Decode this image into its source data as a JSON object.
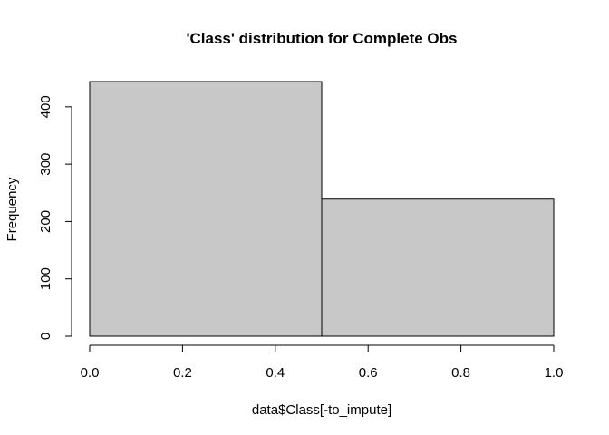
{
  "chart_data": {
    "type": "bar",
    "title": "'Class' distribution for Complete Obs",
    "xlabel": "data$Class[-to_impute]",
    "ylabel": "Frequency",
    "bins": [
      {
        "start": 0.0,
        "end": 0.5,
        "count": 444
      },
      {
        "start": 0.5,
        "end": 1.0,
        "count": 239
      }
    ],
    "xlim": [
      0.0,
      1.0
    ],
    "ylim": [
      0,
      444
    ],
    "x_ticks": [
      "0.0",
      "0.2",
      "0.4",
      "0.6",
      "0.8",
      "1.0"
    ],
    "y_ticks": [
      "0",
      "100",
      "200",
      "300",
      "400"
    ],
    "grid": false,
    "bar_color": "#c8c8c8"
  }
}
